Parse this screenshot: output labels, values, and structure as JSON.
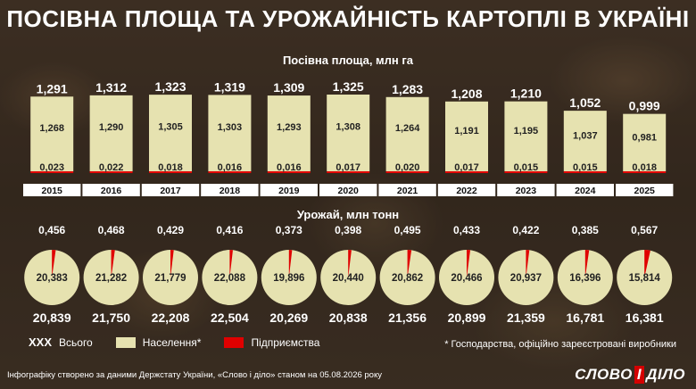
{
  "header": {
    "title": "ПОСІВНА ПЛОЩА ТА УРОЖАЙНІСТЬ КАРТОПЛІ В УКРАЇНІ"
  },
  "colors": {
    "population": "#e6e2b0",
    "enterprises": "#e00000",
    "year_bg": "#ffffff"
  },
  "legend": {
    "total_marker": "XXX",
    "total": "Всього",
    "population": "Населення*",
    "enterprises": "Підприємства"
  },
  "note": "* Господарства, офіційно зареєстровані виробники",
  "source": "Інфографіку створено за даними Держстату України, «Слово і діло» станом на 05.08.2026 року",
  "logo": {
    "left": "СЛОВО",
    "sep": "І",
    "right": "ДІЛО"
  },
  "chart_data": [
    {
      "type": "bar",
      "title": "Посівна площа, млн га",
      "categories": [
        "2015",
        "2016",
        "2017",
        "2018",
        "2019",
        "2020",
        "2021",
        "2022",
        "2023",
        "2024",
        "2025"
      ],
      "total_labels": [
        "1,291",
        "1,312",
        "1,323",
        "1,319",
        "1,309",
        "1,325",
        "1,283",
        "1,208",
        "1,210",
        "1,052",
        "0,999"
      ],
      "series": [
        {
          "name": "Населення*",
          "values": [
            1.268,
            1.29,
            1.305,
            1.303,
            1.293,
            1.308,
            1.264,
            1.191,
            1.195,
            1.037,
            0.981
          ],
          "labels": [
            "1,268",
            "1,290",
            "1,305",
            "1,303",
            "1,293",
            "1,308",
            "1,264",
            "1,191",
            "1,195",
            "1,037",
            "0,981"
          ]
        },
        {
          "name": "Підприємства",
          "values": [
            0.023,
            0.022,
            0.018,
            0.016,
            0.016,
            0.017,
            0.02,
            0.017,
            0.015,
            0.015,
            0.018
          ],
          "labels": [
            "0,023",
            "0,022",
            "0,018",
            "0,016",
            "0,016",
            "0,017",
            "0,020",
            "0,017",
            "0,015",
            "0,015",
            "0,018"
          ]
        }
      ],
      "totals": [
        1.291,
        1.312,
        1.323,
        1.319,
        1.309,
        1.325,
        1.283,
        1.208,
        1.21,
        1.052,
        0.999
      ],
      "ylim": [
        0,
        1.325
      ]
    },
    {
      "type": "pie",
      "title": "Урожай, млн тонн",
      "categories": [
        "2015",
        "2016",
        "2017",
        "2018",
        "2019",
        "2020",
        "2021",
        "2022",
        "2023",
        "2024",
        "2025"
      ],
      "total_labels": [
        "20,839",
        "21,750",
        "22,208",
        "22,504",
        "20,269",
        "20,838",
        "21,356",
        "20,899",
        "21,359",
        "16,781",
        "16,381"
      ],
      "series": [
        {
          "name": "Населення*",
          "values": [
            20.383,
            21.282,
            21.779,
            22.088,
            19.896,
            20.44,
            20.862,
            20.466,
            20.937,
            16.396,
            15.814
          ],
          "labels": [
            "20,383",
            "21,282",
            "21,779",
            "22,088",
            "19,896",
            "20,440",
            "20,862",
            "20,466",
            "20,937",
            "16,396",
            "15,814"
          ]
        },
        {
          "name": "Підприємства",
          "values": [
            0.456,
            0.468,
            0.429,
            0.416,
            0.373,
            0.398,
            0.495,
            0.433,
            0.422,
            0.385,
            0.567
          ],
          "labels": [
            "0,456",
            "0,468",
            "0,429",
            "0,416",
            "0,373",
            "0,398",
            "0,495",
            "0,433",
            "0,422",
            "0,385",
            "0,567"
          ]
        }
      ],
      "totals": [
        20.839,
        21.75,
        22.208,
        22.504,
        20.269,
        20.838,
        21.356,
        20.899,
        21.359,
        16.781,
        16.381
      ]
    }
  ]
}
